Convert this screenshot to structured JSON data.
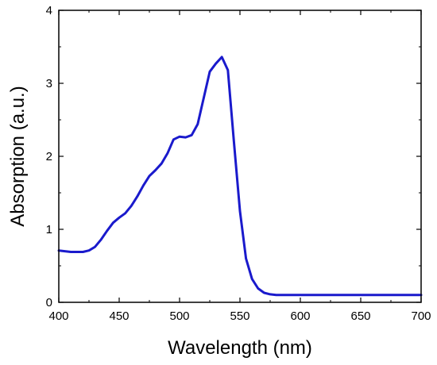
{
  "chart_data": {
    "type": "line",
    "title": "",
    "xlabel": "Wavelength (nm)",
    "ylabel": "Absorption (a.u.)",
    "xlim": [
      400,
      700
    ],
    "ylim": [
      0,
      4
    ],
    "x_ticks": [
      400,
      450,
      500,
      550,
      600,
      650,
      700
    ],
    "y_ticks": [
      0,
      1,
      2,
      3,
      4
    ],
    "x_tick_labels": [
      "400",
      "450",
      "500",
      "550",
      "600",
      "650",
      "700"
    ],
    "y_tick_labels": [
      "0",
      "1",
      "2",
      "3",
      "4"
    ],
    "grid": false,
    "legend": "none",
    "series": [
      {
        "color": "#1a1acc",
        "x": [
          400,
          410,
          420,
          425,
          430,
          435,
          440,
          445,
          450,
          455,
          460,
          465,
          470,
          475,
          480,
          485,
          490,
          495,
          500,
          505,
          510,
          515,
          520,
          525,
          530,
          535,
          540,
          545,
          550,
          555,
          560,
          565,
          570,
          575,
          580,
          600,
          650,
          700
        ],
        "y": [
          0.71,
          0.69,
          0.69,
          0.71,
          0.76,
          0.86,
          0.98,
          1.09,
          1.16,
          1.22,
          1.32,
          1.45,
          1.6,
          1.73,
          1.81,
          1.9,
          2.04,
          2.23,
          2.27,
          2.26,
          2.29,
          2.44,
          2.8,
          3.16,
          3.27,
          3.36,
          3.18,
          2.2,
          1.25,
          0.6,
          0.32,
          0.19,
          0.13,
          0.11,
          0.1,
          0.1,
          0.1,
          0.1
        ]
      }
    ]
  }
}
